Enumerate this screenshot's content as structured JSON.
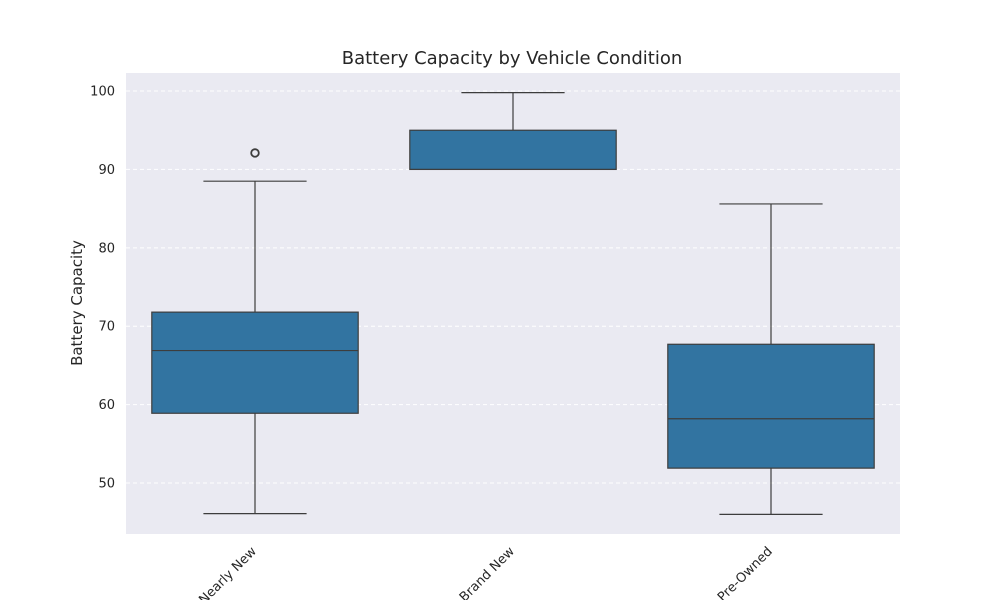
{
  "chart_data": {
    "type": "box",
    "title": "Battery Capacity by Vehicle Condition",
    "xlabel": "",
    "ylabel": "Battery Capacity",
    "categories": [
      "Nearly New",
      "Brand New",
      "Pre-Owned"
    ],
    "ylim": [
      43.5,
      102.3
    ],
    "yticks": [
      50,
      60,
      70,
      80,
      90,
      100
    ],
    "grid": true,
    "boxes": [
      {
        "category": "Nearly New",
        "whisker_low": 46.1,
        "q1": 58.9,
        "median": 66.9,
        "q3": 71.8,
        "whisker_high": 88.5,
        "outliers": [
          92.1
        ]
      },
      {
        "category": "Brand New",
        "whisker_low": 90.0,
        "q1": 90.0,
        "median": 90.0,
        "q3": 95.0,
        "whisker_high": 99.8,
        "outliers": []
      },
      {
        "category": "Pre-Owned",
        "whisker_low": 46.0,
        "q1": 51.9,
        "median": 58.2,
        "q3": 67.7,
        "whisker_high": 85.6,
        "outliers": []
      }
    ],
    "colors": {
      "box": "#3274a1",
      "edge": "#3d3d3d",
      "background": "#eaeaf2",
      "grid": "#ffffff"
    }
  }
}
